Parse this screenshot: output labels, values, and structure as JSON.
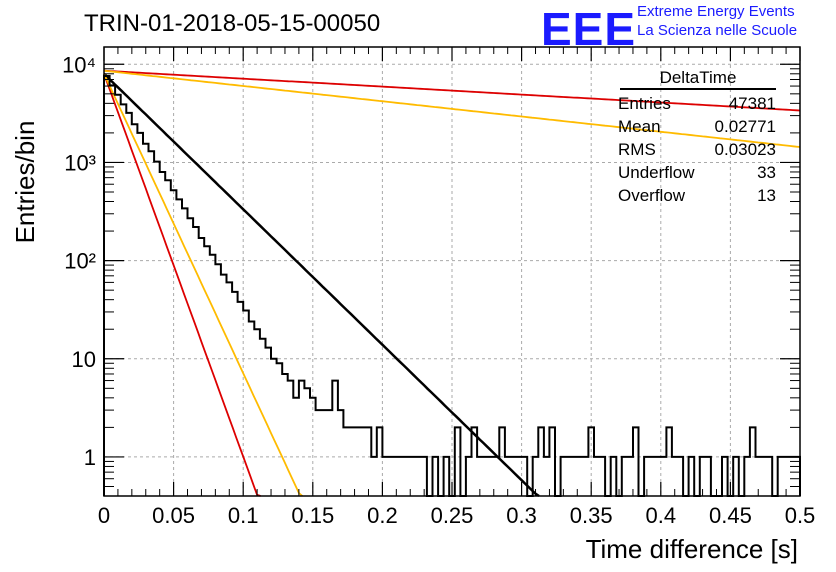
{
  "header": {
    "title": "TRIN-01-2018-05-15-00050",
    "logo": "EEE",
    "logo_line1": "Extreme Energy Events",
    "logo_line2": "La Scienza nelle Scuole"
  },
  "stats": {
    "name": "DeltaTime",
    "rows": [
      {
        "label": "Entries",
        "value": "47381"
      },
      {
        "label": "Mean",
        "value": "0.02771"
      },
      {
        "label": "RMS",
        "value": "0.03023"
      },
      {
        "label": "Underflow",
        "value": "33"
      },
      {
        "label": "Overflow",
        "value": "13"
      }
    ]
  },
  "colors": {
    "histogram": "#000000",
    "fit": "#000000",
    "red": "#dd0000",
    "orange": "#ffbb00",
    "grid": "#aaaaaa"
  },
  "chart_data": {
    "type": "line",
    "title": "TRIN-01-2018-05-15-00050",
    "xlabel": "Time difference [s]",
    "ylabel": "Entries/bin",
    "xlim": [
      0,
      0.5
    ],
    "ylim": [
      0.4,
      15000
    ],
    "yscale": "log",
    "grid": true,
    "x_ticks": [
      "0",
      "0.05",
      "0.1",
      "0.15",
      "0.2",
      "0.25",
      "0.3",
      "0.35",
      "0.4",
      "0.45",
      "0.5"
    ],
    "y_ticks": [
      {
        "value": 1,
        "label": "1"
      },
      {
        "value": 10,
        "label": "10"
      },
      {
        "value": 100,
        "label": "10²"
      },
      {
        "value": 1000,
        "label": "10³"
      },
      {
        "value": 10000,
        "label": "10⁴"
      }
    ],
    "histogram": {
      "bin_width": 0.004,
      "counts": [
        7600,
        6100,
        4900,
        3900,
        3200,
        2450,
        2000,
        1550,
        1300,
        1020,
        800,
        660,
        520,
        420,
        340,
        270,
        220,
        170,
        140,
        115,
        92,
        72,
        60,
        48,
        38,
        31,
        24,
        20,
        16,
        13,
        10,
        9,
        7,
        6,
        4,
        6,
        5,
        4,
        3,
        3,
        3,
        6,
        3,
        2,
        2,
        2,
        2,
        2,
        1,
        2,
        1,
        1,
        1,
        1,
        1,
        1,
        1,
        1,
        0,
        1,
        0,
        1,
        0,
        2,
        0,
        1,
        2,
        1,
        1,
        1,
        1,
        2,
        1,
        1,
        1,
        1,
        0,
        1,
        2,
        1,
        2,
        0,
        1,
        1,
        1,
        1,
        1,
        2,
        1,
        1,
        0,
        1,
        0,
        1,
        1,
        2,
        0,
        1,
        1,
        1,
        1,
        2,
        1,
        1,
        0,
        1,
        0,
        1,
        1,
        0,
        0,
        1,
        0,
        1,
        0,
        1,
        2,
        1,
        1,
        1,
        0,
        1,
        1,
        1,
        1
      ]
    },
    "curves": [
      {
        "color": "black",
        "y0": 8000,
        "slope": 1.38
      },
      {
        "color": "red",
        "y0": 8000,
        "slope": 3.9
      },
      {
        "color": "orange",
        "y0": 8000,
        "slope": 3.05
      },
      {
        "color": "red",
        "y0": 8600,
        "slope": 0.081
      },
      {
        "color": "orange",
        "y0": 8600,
        "slope": 0.1555
      }
    ]
  }
}
